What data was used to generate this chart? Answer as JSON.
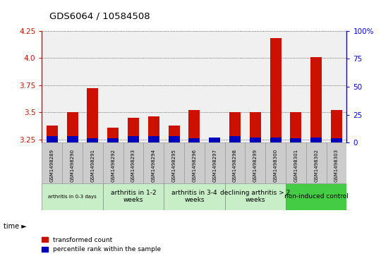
{
  "title": "GDS6064 / 10584508",
  "samples": [
    "GSM1498289",
    "GSM1498290",
    "GSM1498291",
    "GSM1498292",
    "GSM1498293",
    "GSM1498294",
    "GSM1498295",
    "GSM1498296",
    "GSM1498297",
    "GSM1498298",
    "GSM1498299",
    "GSM1498300",
    "GSM1498301",
    "GSM1498302",
    "GSM1498303"
  ],
  "red_values": [
    3.38,
    3.5,
    3.72,
    3.36,
    3.45,
    3.46,
    3.38,
    3.52,
    3.26,
    3.5,
    3.5,
    4.18,
    3.5,
    4.01,
    3.52
  ],
  "blue_values": [
    0.06,
    0.06,
    0.04,
    0.04,
    0.06,
    0.06,
    0.06,
    0.04,
    0.05,
    0.06,
    0.05,
    0.05,
    0.04,
    0.05,
    0.04
  ],
  "ymin": 3.22,
  "ymax": 4.25,
  "yticks": [
    3.25,
    3.5,
    3.75,
    4.0,
    4.25
  ],
  "y2min": 0,
  "y2max": 100,
  "y2ticks": [
    0,
    25,
    50,
    75,
    100
  ],
  "groups": [
    {
      "label": "arthritis in 0-3 days",
      "start": 0,
      "end": 3,
      "color": "#c8eec8",
      "small": true
    },
    {
      "label": "arthritis in 1-2\nweeks",
      "start": 3,
      "end": 6,
      "color": "#c8eec8",
      "small": false
    },
    {
      "label": "arthritis in 3-4\nweeks",
      "start": 6,
      "end": 9,
      "color": "#c8eec8",
      "small": false
    },
    {
      "label": "declining arthritis > 2\nweeks",
      "start": 9,
      "end": 12,
      "color": "#c8eec8",
      "small": false
    },
    {
      "label": "non-induced control",
      "start": 12,
      "end": 15,
      "color": "#44cc44",
      "small": false
    }
  ],
  "bar_width": 0.55,
  "red_color": "#cc1100",
  "blue_color": "#0000bb",
  "grid_color": "#444444",
  "cell_bg": "#cccccc",
  "plot_bg": "#ffffff"
}
